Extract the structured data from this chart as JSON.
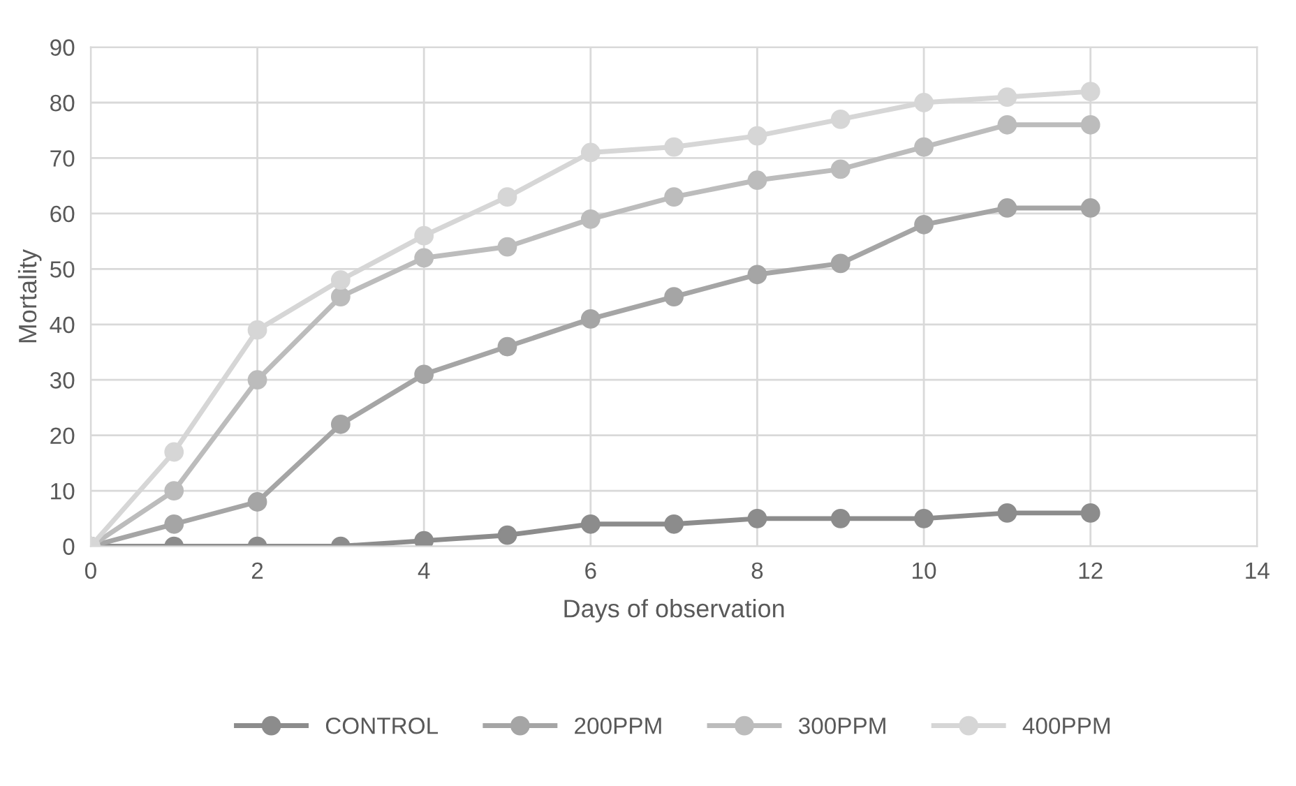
{
  "chart_data": {
    "type": "line",
    "xlabel": "Days of observation",
    "ylabel": "Mortality",
    "x": [
      0,
      1,
      2,
      3,
      4,
      5,
      6,
      7,
      8,
      9,
      10,
      11,
      12
    ],
    "series": [
      {
        "name": "CONTROL",
        "color": "#8c8c8c",
        "values": [
          0,
          0,
          0,
          0,
          1,
          2,
          4,
          4,
          5,
          5,
          5,
          6,
          6
        ]
      },
      {
        "name": "200PPM",
        "color": "#a5a5a5",
        "values": [
          0,
          4,
          8,
          22,
          31,
          36,
          41,
          45,
          49,
          51,
          58,
          61,
          61
        ]
      },
      {
        "name": "300PPM",
        "color": "#bcbcbc",
        "values": [
          0,
          10,
          30,
          45,
          52,
          54,
          59,
          63,
          66,
          68,
          72,
          76,
          76
        ]
      },
      {
        "name": "400PPM",
        "color": "#d6d6d6",
        "values": [
          0,
          17,
          39,
          48,
          56,
          63,
          71,
          72,
          74,
          77,
          80,
          81,
          82
        ]
      }
    ],
    "xlim": [
      0,
      14
    ],
    "xticks": [
      0,
      2,
      4,
      6,
      8,
      10,
      12,
      14
    ],
    "ylim": [
      0,
      90
    ],
    "yticks": [
      0,
      10,
      20,
      30,
      40,
      50,
      60,
      70,
      80,
      90
    ],
    "grid": true,
    "legend": "bottom",
    "marker": "circle",
    "line_style": "solid"
  }
}
